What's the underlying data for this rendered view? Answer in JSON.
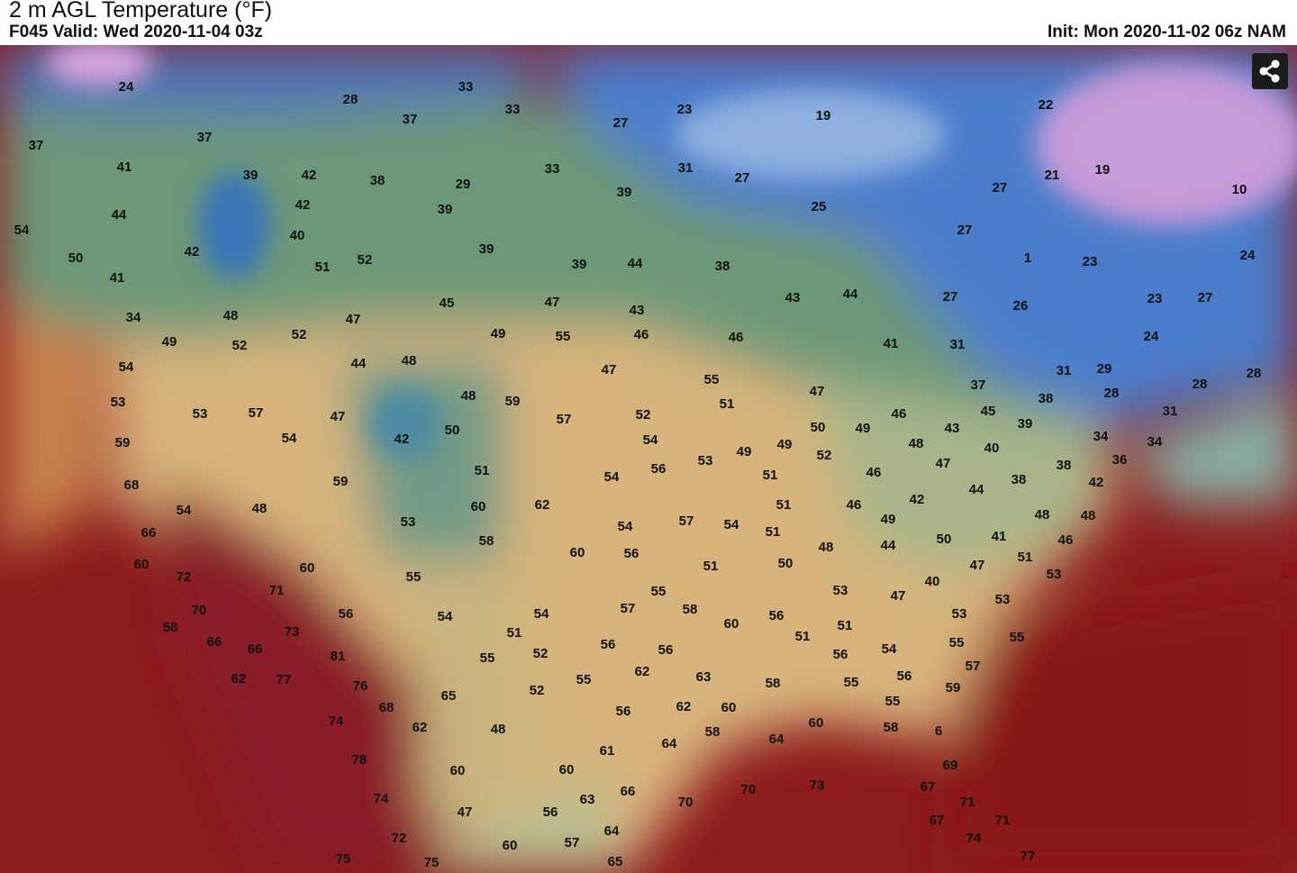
{
  "header": {
    "title": "2 m AGL Temperature (°F)",
    "valid": "F045 Valid: Wed 2020-11-04 03z",
    "init": "Init: Mon 2020-11-02 06z NAM"
  },
  "map": {
    "labels": [
      24,
      28,
      33,
      33,
      37,
      27,
      23,
      19,
      22,
      37,
      37,
      41,
      39,
      42,
      38,
      29,
      33,
      31,
      27,
      39,
      21,
      19,
      27,
      10,
      44,
      42,
      39,
      25,
      27,
      54,
      40,
      39,
      50,
      42,
      52,
      51,
      39,
      44,
      38,
      1,
      23,
      24,
      41,
      47,
      45,
      43,
      44,
      27,
      26,
      23,
      27,
      48,
      34,
      43,
      47,
      52,
      49,
      52,
      49,
      55,
      46,
      46,
      24,
      41,
      31,
      54,
      44,
      48,
      47,
      31,
      29,
      55,
      28,
      53,
      48,
      59,
      47,
      37,
      28,
      28,
      51,
      53,
      57,
      52,
      57,
      45,
      38,
      31,
      47,
      50,
      50,
      49,
      46,
      43,
      39,
      59,
      54,
      42,
      54,
      49,
      52,
      48,
      40,
      34,
      34,
      53,
      49,
      51,
      56,
      54,
      51,
      46,
      47,
      36,
      38,
      68,
      59,
      44,
      38,
      42,
      60,
      62,
      51,
      46,
      42,
      54,
      48,
      53,
      57,
      54,
      54,
      49,
      48,
      48,
      66,
      51,
      41,
      46,
      50,
      58,
      60,
      56,
      48,
      44,
      60,
      51,
      47,
      53,
      72,
      60,
      55,
      51,
      50,
      71,
      40,
      53,
      47,
      55,
      53,
      70,
      56,
      54,
      57,
      58,
      53,
      56,
      58,
      73,
      54,
      60,
      51,
      51,
      51,
      55,
      55,
      66,
      66,
      52,
      56,
      56,
      54,
      56,
      81,
      55,
      62,
      57,
      62,
      77,
      55,
      63,
      56,
      55,
      76,
      52,
      65,
      58,
      59,
      55,
      68,
      62,
      60,
      56,
      74,
      62,
      48,
      58,
      60,
      58,
      64,
      6,
      78,
      61,
      64,
      69,
      60,
      60,
      70,
      73,
      70,
      67,
      63,
      71,
      74,
      66,
      47,
      56,
      67,
      71,
      72,
      64,
      74,
      60,
      57,
      75,
      75,
      65,
      77
    ]
  }
}
